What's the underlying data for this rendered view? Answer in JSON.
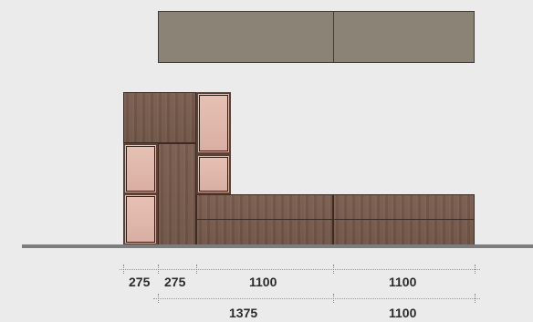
{
  "dimensions": {
    "row1": [
      "275",
      "275",
      "1100",
      "1100"
    ],
    "row2": [
      "1375",
      "1100"
    ]
  },
  "colors": {
    "background": "#ebebeb",
    "upper_panel": "#8b8376",
    "wood": "#6f5446",
    "glass": "#d9aea2",
    "floor": "#7d7d7d"
  }
}
